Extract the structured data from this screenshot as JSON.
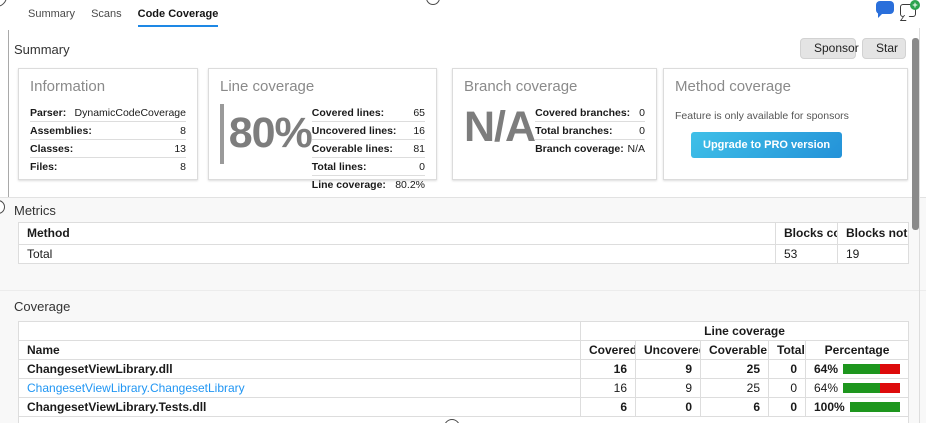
{
  "tabs": {
    "items": [
      {
        "label": "Summary"
      },
      {
        "label": "Scans"
      },
      {
        "label": "Code Coverage"
      }
    ],
    "active": "Code Coverage"
  },
  "topbar": {
    "sponsor_label": "Sponsor",
    "star_label": "Star",
    "plus_glyph": "+"
  },
  "summary_section": {
    "title": "Summary"
  },
  "cards": {
    "information": {
      "title": "Information",
      "rows": [
        [
          "Parser:",
          "DynamicCodeCoverage"
        ],
        [
          "Assemblies:",
          "8"
        ],
        [
          "Classes:",
          "13"
        ],
        [
          "Files:",
          "8"
        ]
      ]
    },
    "line_coverage": {
      "title": "Line coverage",
      "big_value": "80%",
      "rows": [
        [
          "Covered lines:",
          "65"
        ],
        [
          "Uncovered lines:",
          "16"
        ],
        [
          "Coverable lines:",
          "81"
        ],
        [
          "Total lines:",
          "0"
        ],
        [
          "Line coverage:",
          "80.2%"
        ]
      ]
    },
    "branch_coverage": {
      "title": "Branch coverage",
      "big_value": "N/A",
      "rows": [
        [
          "Covered branches:",
          "0"
        ],
        [
          "Total branches:",
          "0"
        ],
        [
          "Branch coverage:",
          "N/A"
        ]
      ]
    },
    "method_coverage": {
      "title": "Method coverage",
      "message": "Feature is only available for sponsors",
      "button_label": "Upgrade to PRO version"
    }
  },
  "metrics": {
    "title": "Metrics",
    "headers": [
      "Method",
      "Blocks covered",
      "Blocks not covered"
    ],
    "total_row": [
      "Total",
      "53",
      "19"
    ]
  },
  "coverage": {
    "title": "Coverage",
    "group_header": "Line coverage",
    "headers": [
      "Name",
      "Covered",
      "Uncovered",
      "Coverable",
      "Total",
      "Percentage"
    ],
    "rows": [
      {
        "name": "ChangesetViewLibrary.dll",
        "style": "bold",
        "covered": "16",
        "uncovered": "9",
        "coverable": "25",
        "total": "0",
        "percentage": "64%",
        "pct": 64
      },
      {
        "name": "ChangesetViewLibrary.ChangesetLibrary",
        "style": "link",
        "covered": "16",
        "uncovered": "9",
        "coverable": "25",
        "total": "0",
        "percentage": "64%",
        "pct": 64
      },
      {
        "name": "ChangesetViewLibrary.Tests.dll",
        "style": "bold",
        "covered": "6",
        "uncovered": "0",
        "coverable": "6",
        "total": "0",
        "percentage": "100%",
        "pct": 100
      }
    ]
  },
  "colors": {
    "accent_blue": "#1e88e5",
    "link_blue": "#2196f3",
    "bar_green": "#1e961e",
    "bar_red": "#dd0b0b",
    "pro_button_start": "#3fc0e8",
    "pro_button_end": "#2492d8",
    "chat_icon_blue": "#2a6fdb",
    "plus_badge_green": "#2da44e"
  }
}
